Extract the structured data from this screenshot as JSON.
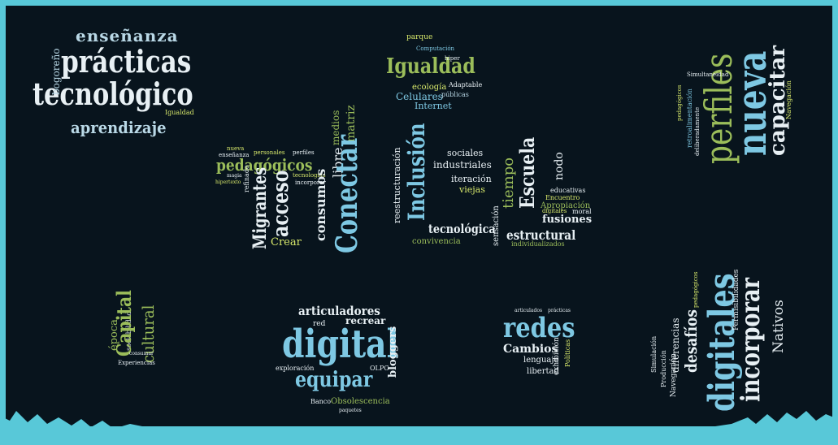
{
  "colors": {
    "background": "#08141d",
    "frame": "#58c8d8",
    "white": "#e8f0f4",
    "blue": "#7ec8e3",
    "green": "#9bbd5a",
    "yellow": "#d7e86b"
  },
  "clusters": {
    "top_left": {
      "ensenanza": "enseñanza",
      "practicas": "prácticas",
      "tecnologico": "tecnológico",
      "aprendizaje": "aprendizaje",
      "bogoreño": "bogoreño",
      "igualdad_small": "Igualdad"
    },
    "top_center": {
      "igualdad": "Igualdad",
      "ecologia": "ecología",
      "adaptable": "Adaptable",
      "celulares": "Celulares",
      "publicas": "públicas",
      "internet": "Internet",
      "parque": "parque",
      "computacion": "Computación",
      "hiper": "hiper"
    },
    "top_right": {
      "perfiles": "perfiles",
      "nueva": "nueva",
      "capacitar": "capacitar",
      "navegacion": "Navegación",
      "retroalimentacion": "retroalimentación",
      "deliberadamente": "deliberadamente",
      "pedagogicos": "pedagógicos",
      "simultaneidad": "Simultaneidad"
    },
    "center_tics": {
      "pedagogicos": "pedagógicos",
      "migrantes": "Migrantes",
      "acceso": "acceso",
      "crear": "Crear",
      "nueva": "nueva",
      "ensenanza": "enseñanza",
      "personales": "personales",
      "perfiles": "perfiles",
      "tecnologias": "tecnologías",
      "incorporar": "incorporar",
      "medios": "medios",
      "matriz": "matriz",
      "libre": "libre",
      "consumos": "consumos",
      "conectar": "Conectar",
      "inclusion": "Inclusión",
      "reestructuracion": "reestructuración",
      "tecnologica": "tecnológica",
      "convivencia": "convivencia",
      "sociales": "sociales",
      "industriales": "industriales",
      "iteracion": "iteración",
      "viejas": "viejas",
      "tiempo": "tiempo",
      "escuela": "Escuela",
      "nodo": "nodo",
      "educativas": "educativas",
      "apropiacion": "Apropiación",
      "fusiones": "fusiones",
      "estructural": "estructural",
      "individualizados": "individualizados",
      "sensacion": "sensación",
      "encuentro": "Encuentro",
      "moral": "moral",
      "digitales": "digitales",
      "refinado": "refinado",
      "magia": "magia",
      "hipertexto": "hipertexto"
    },
    "bottom_left": {
      "epoca": "época",
      "capital": "Capital",
      "cultural": "cultural",
      "sociabilidad": "sociabilidad",
      "experiencias": "Experiencias",
      "consumar": "consumar"
    },
    "bottom_center": {
      "articuladores": "articuladores",
      "digital": "digital",
      "equipar": "equipar",
      "recrear": "recrear",
      "red": "red",
      "bloggers": "bloggers",
      "exploracion": "exploración",
      "olpc": "OLPC",
      "obsolescencia": "Obsolescencia",
      "banco": "Banco",
      "paquetes": "paquetes"
    },
    "bottom_mid_right": {
      "redes": "redes",
      "cambios": "Cambios",
      "lenguaje": "lenguaje",
      "libertad": "libertad",
      "exhibicion": "exhibición",
      "politicas": "Políticas",
      "articulados": "articulados",
      "practicas": "prácticas"
    },
    "bottom_right": {
      "digitales": "digitales",
      "incorporar": "incorporar",
      "nativos": "Nativos",
      "desafios": "desafíos",
      "diferencias": "diferencias",
      "navegacion": "Navegación",
      "simulacion": "Simulación",
      "permisibilidades": "Permisibilidades",
      "pedagogicos": "pedagógicos",
      "produccion": "Producción"
    }
  }
}
